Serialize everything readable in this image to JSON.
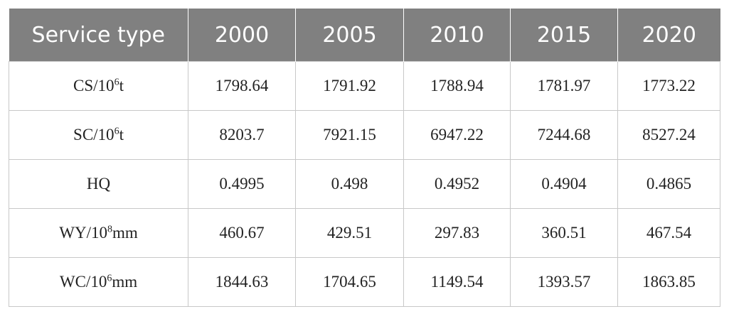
{
  "table": {
    "header": [
      "Service type",
      "2000",
      "2005",
      "2010",
      "2015",
      "2020"
    ],
    "rows": [
      {
        "label": [
          "CS/10",
          "6",
          "t"
        ],
        "cells": [
          "1798.64",
          "1791.92",
          "1788.94",
          "1781.97",
          "1773.22"
        ]
      },
      {
        "label": [
          "SC/10",
          "6",
          "t"
        ],
        "cells": [
          "8203.7",
          "7921.15",
          "6947.22",
          "7244.68",
          "8527.24"
        ]
      },
      {
        "label": [
          "HQ"
        ],
        "cells": [
          "0.4995",
          "0.498",
          "0.4952",
          "0.4904",
          "0.4865"
        ]
      },
      {
        "label": [
          "WY/10",
          "8",
          "mm"
        ],
        "cells": [
          "460.67",
          "429.51",
          "297.83",
          "360.51",
          "467.54"
        ]
      },
      {
        "label": [
          "WC/10",
          "6",
          "mm"
        ],
        "cells": [
          "1844.63",
          "1704.65",
          "1149.54",
          "1393.57",
          "1863.85"
        ]
      }
    ]
  }
}
